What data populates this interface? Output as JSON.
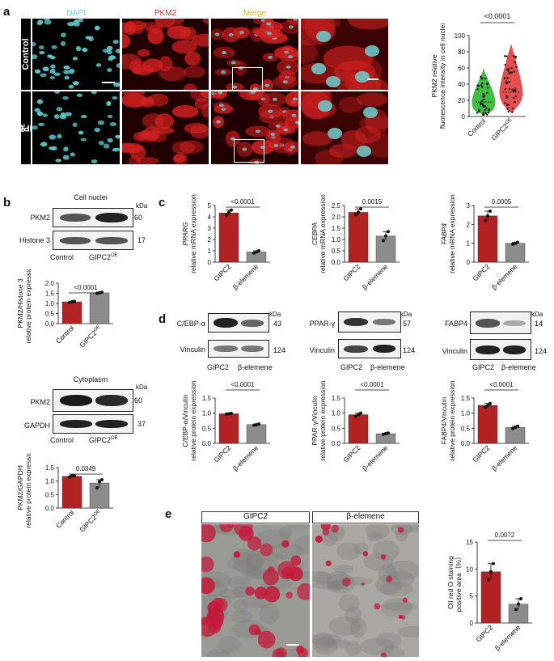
{
  "panels": {
    "a": "a",
    "b": "b",
    "c": "c",
    "d": "d",
    "e": "e"
  },
  "a": {
    "channels": [
      "DAPI",
      "PKM2",
      "Merge"
    ],
    "channel_colors": [
      "#66d9d9",
      "#e03030",
      "#e0b030"
    ],
    "rows": [
      "Control",
      "GIPC2OE"
    ],
    "row_base": "GIPC2",
    "row_sup": "OE",
    "chart": {
      "pval": "<0.0001",
      "ylabel1": "PKM2 relative",
      "ylabel2": "fluorescence intensity in cell nuclei",
      "xticks": [
        "Control",
        "GIPC2OE"
      ],
      "yticks": [
        "0",
        "20",
        "40",
        "60",
        "80",
        "100"
      ]
    }
  },
  "b": {
    "nuc_title": "Cell nuclei",
    "cyto_title": "Cytoplasm",
    "kda": "kDa",
    "nuc_rows": [
      {
        "label": "PKM2",
        "kda": "60"
      },
      {
        "label": "Histone 3",
        "kda": "17"
      }
    ],
    "cyto_rows": [
      {
        "label": "PKM2",
        "kda": "60"
      },
      {
        "label": "GAPDH",
        "kda": "37"
      }
    ],
    "lanes": [
      "Control",
      "GIPC2OE"
    ],
    "chart1": {
      "pval": "<0.0001",
      "ylabel1": "PKM2/Histone 3",
      "ylabel2": "relative protein expression",
      "yticks": [
        "0.0",
        "0.5",
        "1.0",
        "1.5",
        "2.0"
      ]
    },
    "chart2": {
      "pval": "0.0349",
      "ylabel1": "PKM2/GAPDH",
      "ylabel2": "relative protein expression",
      "yticks": [
        "0.0",
        "0.5",
        "1.0",
        "1.5"
      ]
    }
  },
  "c": {
    "groups": [
      "GIPC2",
      "β-elemene"
    ],
    "charts": [
      {
        "gene": "PPARG",
        "pval": "<0.0001",
        "ylabel2": "relative mRNA expression",
        "yticks": [
          "0",
          "1",
          "2",
          "3",
          "4",
          "5"
        ]
      },
      {
        "gene": "CEBPA",
        "pval": "0.0015",
        "ylabel2": "relative mRNA expression",
        "yticks": [
          "0.0",
          "0.5",
          "1.0",
          "1.5",
          "2.0",
          "2.5"
        ]
      },
      {
        "gene": "FABP4",
        "pval": "0.0005",
        "ylabel2": "relative mRNA expression",
        "yticks": [
          "0",
          "1",
          "2",
          "3"
        ]
      }
    ]
  },
  "d": {
    "kda": "kDa",
    "lanes": [
      "GIPC2",
      "β-elemene"
    ],
    "blots": [
      {
        "target": "C/EBP-α",
        "kda": "43",
        "loading": "Vinculin",
        "lkda": "124"
      },
      {
        "target": "PPAR-γ",
        "kda": "57",
        "loading": "Vinculin",
        "lkda": "124"
      },
      {
        "target": "FABP4",
        "kda": "14",
        "loading": "Vinculin",
        "lkda": "124"
      }
    ],
    "charts": [
      {
        "pval": "<0.0001",
        "ylabel1": "C/EBP-α/Vinculin",
        "ylabel2": "relative protein expression",
        "yticks": [
          "0.0",
          "0.5",
          "1.0",
          "1.5"
        ]
      },
      {
        "pval": "<0.0001",
        "ylabel1": "PPAR-γ/Vinculin",
        "ylabel2": "relative protein expression",
        "yticks": [
          "0.0",
          "0.5",
          "1.0",
          "1.5"
        ]
      },
      {
        "pval": "<0.0001",
        "ylabel1": "FABP4/Vinculin",
        "ylabel2": "relative protein expression",
        "yticks": [
          "0.0",
          "0.5",
          "1.0",
          "1.5"
        ]
      }
    ]
  },
  "e": {
    "labels": [
      "GIPC2",
      "β-elemene"
    ],
    "chart": {
      "pval": "0.0072",
      "ylabel1": "Oil red O staining",
      "ylabel2": "positive area（%）",
      "yticks": [
        "0",
        "5",
        "10",
        "15"
      ]
    }
  },
  "colors": {
    "red": "#b22222",
    "grey": "#8c8c8c",
    "green": "#2db82d",
    "violin_red": "#e03c3c"
  },
  "chart_data": [
    {
      "type": "violin",
      "panel": "a",
      "categories": [
        "Control",
        "GIPC2OE"
      ],
      "medians": [
        18,
        30
      ],
      "ranges": [
        [
          2,
          58
        ],
        [
          5,
          88
        ]
      ],
      "ylim": [
        0,
        100
      ],
      "pval": "<0.0001"
    },
    {
      "type": "bar",
      "panel": "b-nuclei",
      "categories": [
        "Control",
        "GIPC2OE"
      ],
      "values": [
        1.08,
        1.52
      ],
      "points": [
        [
          1.05,
          1.08,
          1.1
        ],
        [
          1.5,
          1.52,
          1.55
        ]
      ],
      "ylim": [
        0,
        2.0
      ],
      "pval": "<0.0001"
    },
    {
      "type": "bar",
      "panel": "b-cytoplasm",
      "categories": [
        "Control",
        "GIPC2OE"
      ],
      "values": [
        1.18,
        0.93
      ],
      "points": [
        [
          1.15,
          1.2,
          1.2
        ],
        [
          0.75,
          0.98,
          1.05
        ]
      ],
      "ylim": [
        0,
        1.5
      ],
      "pval": "0.0349"
    },
    {
      "type": "bar",
      "panel": "c-PPARG",
      "categories": [
        "GIPC2",
        "β-elemene"
      ],
      "values": [
        4.35,
        0.9
      ],
      "points": [
        [
          4.15,
          4.4,
          4.6
        ],
        [
          0.8,
          0.9,
          1.0
        ]
      ],
      "ylim": [
        0,
        5
      ],
      "pval": "<0.0001"
    },
    {
      "type": "bar",
      "panel": "c-CEBPA",
      "categories": [
        "GIPC2",
        "β-elemene"
      ],
      "values": [
        2.2,
        1.15
      ],
      "points": [
        [
          2.1,
          2.2,
          2.35
        ],
        [
          0.95,
          1.15,
          1.35
        ]
      ],
      "ylim": [
        0,
        2.5
      ],
      "pval": "0.0015"
    },
    {
      "type": "bar",
      "panel": "c-FABP4",
      "categories": [
        "GIPC2",
        "β-elemene"
      ],
      "values": [
        2.45,
        1.0
      ],
      "points": [
        [
          2.2,
          2.45,
          2.7
        ],
        [
          0.95,
          1.0,
          1.05
        ]
      ],
      "ylim": [
        0,
        3
      ],
      "pval": "0.0005"
    },
    {
      "type": "bar",
      "panel": "d-CEBPa",
      "categories": [
        "GIPC2",
        "β-elemene"
      ],
      "values": [
        0.98,
        0.62
      ],
      "points": [
        [
          0.97,
          0.98,
          0.99
        ],
        [
          0.6,
          0.62,
          0.64
        ]
      ],
      "ylim": [
        0,
        1.5
      ],
      "pval": "<0.0001"
    },
    {
      "type": "bar",
      "panel": "d-PPARg",
      "categories": [
        "GIPC2",
        "β-elemene"
      ],
      "values": [
        0.95,
        0.32
      ],
      "points": [
        [
          0.9,
          0.95,
          1.0
        ],
        [
          0.3,
          0.32,
          0.34
        ]
      ],
      "ylim": [
        0,
        1.5
      ],
      "pval": "<0.0001"
    },
    {
      "type": "bar",
      "panel": "d-FABP4",
      "categories": [
        "GIPC2",
        "β-elemene"
      ],
      "values": [
        1.26,
        0.53
      ],
      "points": [
        [
          1.2,
          1.26,
          1.32
        ],
        [
          0.49,
          0.53,
          0.57
        ]
      ],
      "ylim": [
        0,
        1.5
      ],
      "pval": "<0.0001"
    },
    {
      "type": "bar",
      "panel": "e",
      "categories": [
        "GIPC2",
        "β-elemene"
      ],
      "values": [
        9.5,
        3.5
      ],
      "points": [
        [
          8,
          9.5,
          11
        ],
        [
          2.5,
          3.5,
          4.5
        ]
      ],
      "ylim": [
        0,
        15
      ],
      "pval": "0.0072"
    }
  ]
}
